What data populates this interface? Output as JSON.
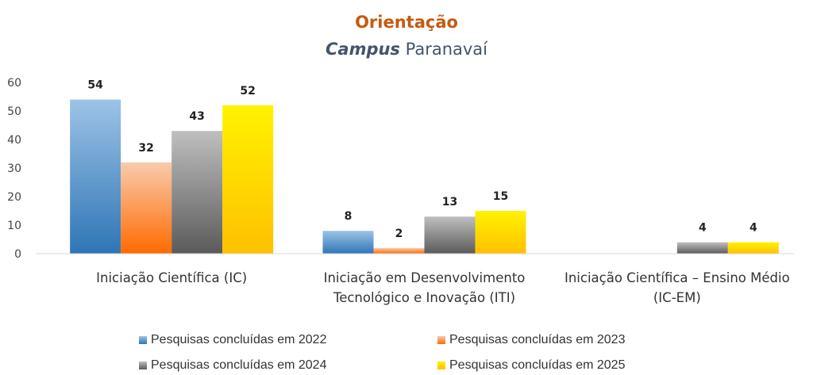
{
  "title": {
    "line1": "Orientação",
    "line2_italic": "Campus",
    "line2_rest": " Paranavaí"
  },
  "chart_data": {
    "type": "bar",
    "categories": [
      [
        "Iniciação Científica (IC)"
      ],
      [
        "Iniciação em Desenvolvimento",
        "Tecnológico e Inovação (ITI)"
      ],
      [
        "Iniciação Científica – Ensino Médio",
        "(IC-EM)"
      ]
    ],
    "series": [
      {
        "name": "Pesquisas concluídas em 2022",
        "values": [
          54,
          8,
          null
        ],
        "color_top": "#9DC3E6",
        "color_bottom": "#2E75B6"
      },
      {
        "name": "Pesquisas concluídas em 2023",
        "values": [
          32,
          2,
          null
        ],
        "color_top": "#F8CBAD",
        "color_bottom": "#FF6A00"
      },
      {
        "name": "Pesquisas concluídas em 2024",
        "values": [
          43,
          13,
          4
        ],
        "color_top": "#BFBFBF",
        "color_bottom": "#5A5A5A"
      },
      {
        "name": "Pesquisas concluídas em 2025",
        "values": [
          52,
          15,
          4
        ],
        "color_top": "#FFF200",
        "color_bottom": "#FFC000"
      }
    ],
    "ylim": [
      0,
      60
    ],
    "yticks": [
      0,
      10,
      20,
      30,
      40,
      50,
      60
    ],
    "grid": false,
    "legend": "bottom"
  }
}
